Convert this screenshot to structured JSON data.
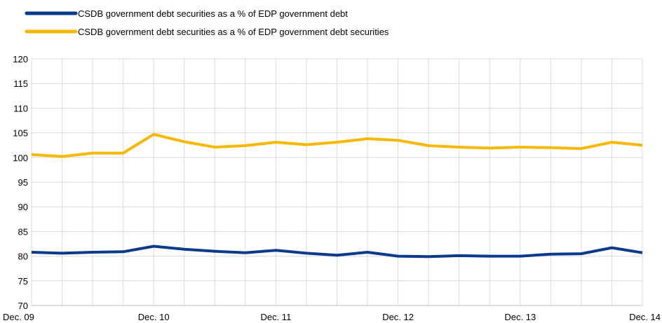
{
  "chart_data": {
    "type": "line",
    "title": "",
    "xlabel": "",
    "ylabel": "",
    "ylim": [
      70,
      120
    ],
    "yticks": [
      70,
      75,
      80,
      85,
      90,
      95,
      100,
      105,
      110,
      115,
      120
    ],
    "xtick_labels": [
      "Dec. 09",
      "Dec. 10",
      "Dec. 11",
      "Dec. 12",
      "Dec. 13",
      "Dec. 14"
    ],
    "x": [
      "Dec. 09",
      "Mar. 10",
      "Jun. 10",
      "Sep. 10",
      "Dec. 10",
      "Mar. 11",
      "Jun. 11",
      "Sep. 11",
      "Dec. 11",
      "Mar. 12",
      "Jun. 12",
      "Sep. 12",
      "Dec. 12",
      "Mar. 13",
      "Jun. 13",
      "Sep. 13",
      "Dec. 13",
      "Mar. 14",
      "Jun. 14",
      "Sep. 14",
      "Dec. 14"
    ],
    "grid": true,
    "legend_position": "top-left",
    "series": [
      {
        "name": "CSDB government debt securities as a % of EDP government debt",
        "color": "#0a3a8c",
        "values": [
          80.8,
          80.6,
          80.8,
          80.9,
          82.0,
          81.4,
          81.0,
          80.7,
          81.2,
          80.6,
          80.2,
          80.8,
          80.0,
          79.9,
          80.1,
          80.0,
          80.0,
          80.4,
          80.5,
          81.7,
          80.7
        ]
      },
      {
        "name": "CSDB government debt securities as a % of EDP government debt securities",
        "color": "#f6b800",
        "values": [
          100.6,
          100.2,
          100.9,
          100.9,
          104.7,
          103.2,
          102.1,
          102.4,
          103.1,
          102.6,
          103.1,
          103.8,
          103.5,
          102.4,
          102.1,
          101.9,
          102.1,
          102.0,
          101.8,
          103.1,
          102.5
        ]
      }
    ]
  }
}
